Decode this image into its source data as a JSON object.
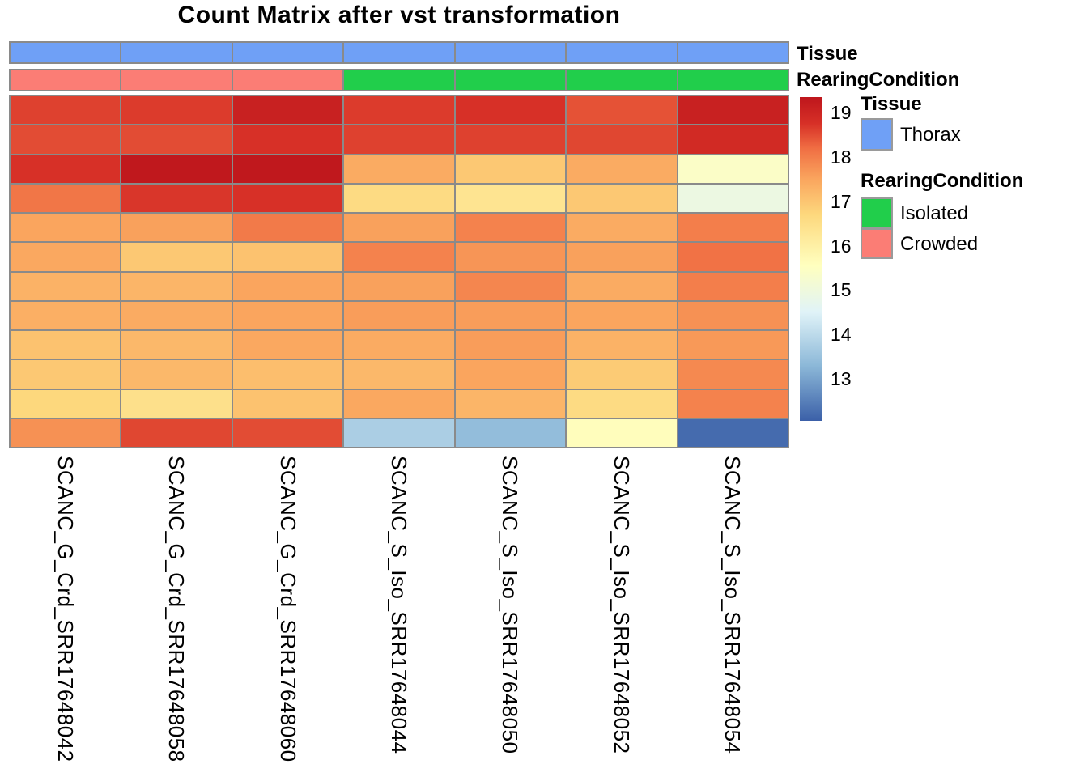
{
  "title": "Count Matrix after vst transformation",
  "annotation_row_labels": {
    "tissue": "Tissue",
    "rearing": "RearingCondition"
  },
  "legend": {
    "tissue_title": "Tissue",
    "tissue_items": [
      {
        "label": "Thorax",
        "color": "#6FA0F6"
      }
    ],
    "rearing_title": "RearingCondition",
    "rearing_items": [
      {
        "label": "Isolated",
        "color": "#21CE4B"
      },
      {
        "label": "Crowded",
        "color": "#FB7D75"
      }
    ]
  },
  "colorbar": {
    "ticks": [
      19,
      18,
      17,
      16,
      15,
      14,
      13
    ],
    "vmin": 12.05,
    "vmax": 19.35,
    "stops": [
      {
        "v": 12.05,
        "c": "#3B60A8"
      },
      {
        "v": 13.3,
        "c": "#8CB8D8"
      },
      {
        "v": 14.5,
        "c": "#E0F3F8"
      },
      {
        "v": 15.55,
        "c": "#FFFFBF"
      },
      {
        "v": 16.7,
        "c": "#FDD87D"
      },
      {
        "v": 17.5,
        "c": "#FAA55E"
      },
      {
        "v": 18.2,
        "c": "#F06E43"
      },
      {
        "v": 18.75,
        "c": "#D73027"
      },
      {
        "v": 19.35,
        "c": "#BE161C"
      }
    ]
  },
  "grid_line_color": "#8a8a8a",
  "chart_data": {
    "type": "heatmap",
    "title": "Count Matrix after vst transformation",
    "columns": [
      "SCANC_G_Crd_SRR17648042",
      "SCANC_G_Crd_SRR17648058",
      "SCANC_G_Crd_SRR17648060",
      "SCANC_S_Iso_SRR17648044",
      "SCANC_S_Iso_SRR17648050",
      "SCANC_S_Iso_SRR17648052",
      "SCANC_S_Iso_SRR17648054"
    ],
    "col_annotations": {
      "Tissue": [
        "Thorax",
        "Thorax",
        "Thorax",
        "Thorax",
        "Thorax",
        "Thorax",
        "Thorax"
      ],
      "RearingCondition": [
        "Crowded",
        "Crowded",
        "Crowded",
        "Isolated",
        "Isolated",
        "Isolated",
        "Isolated"
      ]
    },
    "annotation_colors": {
      "Thorax": "#6FA0F6",
      "Isolated": "#21CE4B",
      "Crowded": "#FB7D75"
    },
    "values": [
      [
        18.6,
        18.65,
        19.1,
        18.65,
        18.75,
        18.45,
        19.1
      ],
      [
        18.5,
        18.5,
        18.75,
        18.6,
        18.6,
        18.55,
        18.9
      ],
      [
        18.75,
        19.3,
        19.3,
        17.4,
        16.95,
        17.4,
        15.4
      ],
      [
        18.1,
        18.7,
        18.75,
        16.6,
        16.35,
        16.95,
        14.9
      ],
      [
        17.5,
        17.55,
        18.05,
        17.55,
        17.95,
        17.4,
        18.0
      ],
      [
        17.45,
        16.95,
        17.05,
        17.95,
        17.7,
        17.55,
        18.15
      ],
      [
        17.3,
        17.25,
        17.5,
        17.55,
        17.9,
        17.4,
        18.0
      ],
      [
        17.35,
        17.4,
        17.5,
        17.6,
        17.6,
        17.5,
        17.75
      ],
      [
        17.05,
        17.2,
        17.45,
        17.4,
        17.6,
        17.3,
        17.65
      ],
      [
        16.95,
        17.2,
        17.1,
        17.2,
        17.5,
        16.9,
        17.85
      ],
      [
        16.7,
        16.45,
        17.05,
        17.45,
        17.25,
        16.6,
        17.95
      ],
      [
        17.75,
        18.55,
        18.5,
        13.75,
        13.4,
        15.6,
        12.2
      ]
    ],
    "scale_ticks": [
      19,
      18,
      17,
      16,
      15,
      14,
      13
    ],
    "scale_range": [
      12.05,
      19.35
    ],
    "legend_position": "right",
    "grid": true
  }
}
